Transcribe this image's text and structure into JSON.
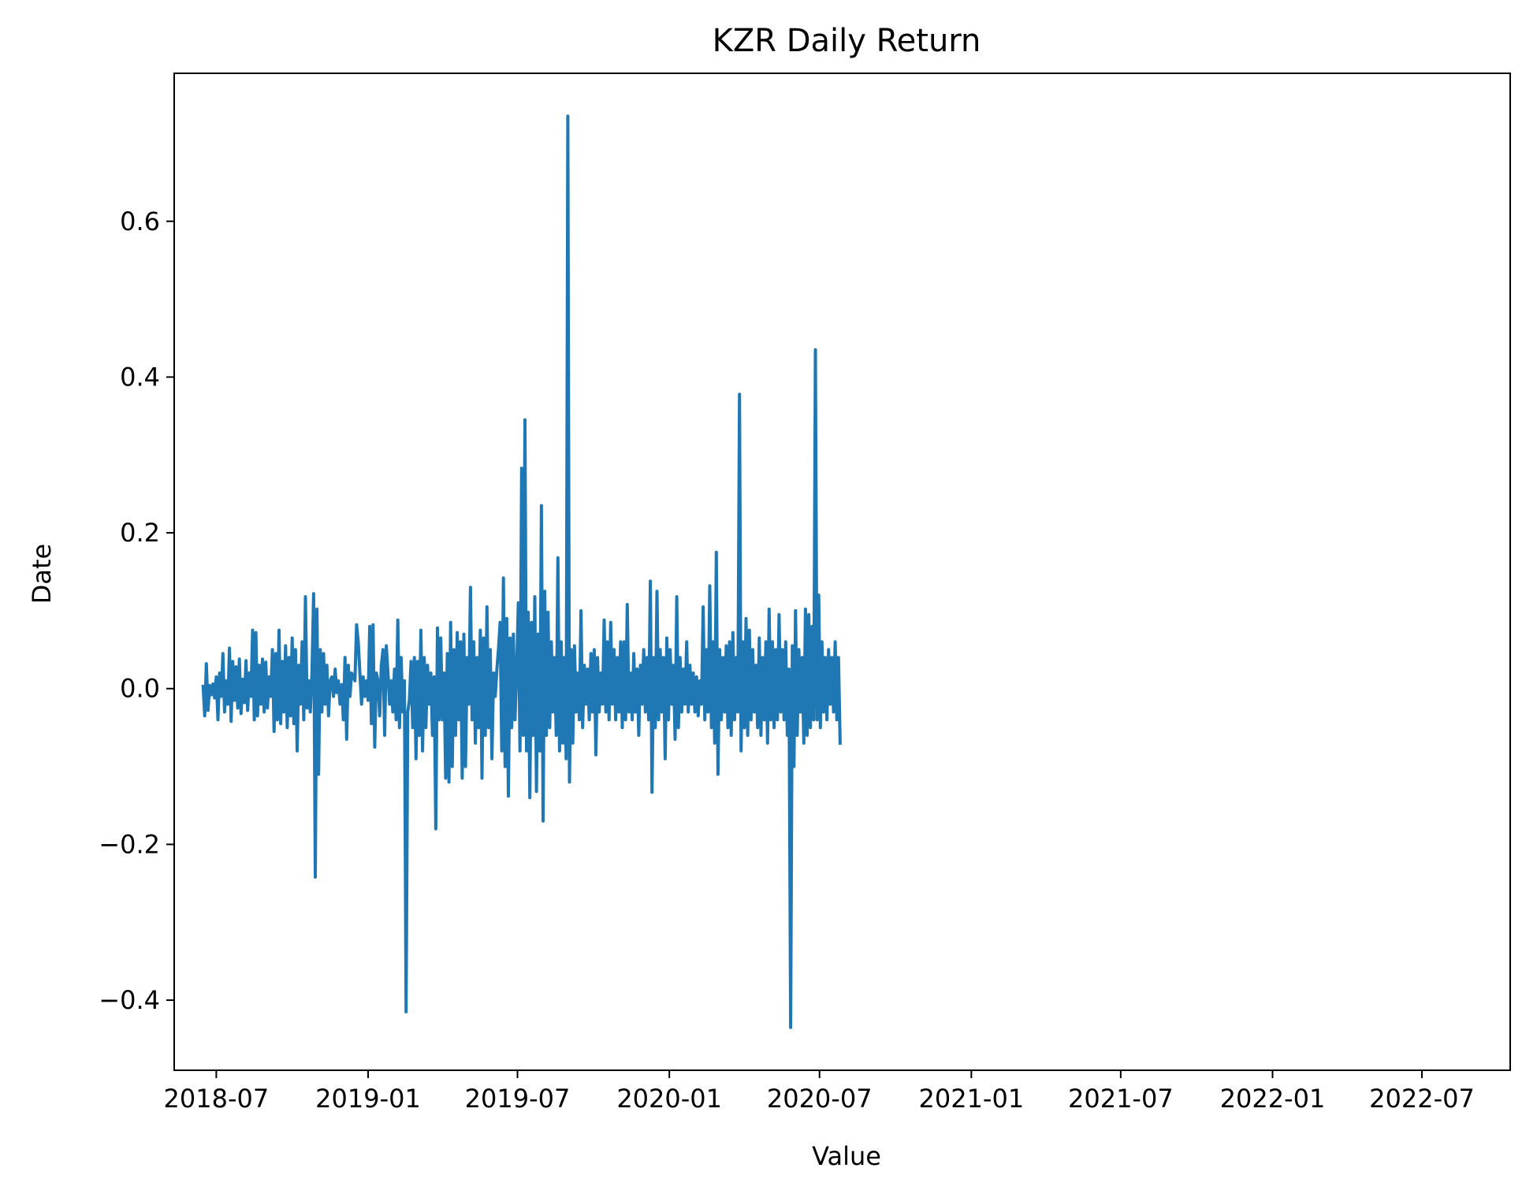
{
  "chart_data": {
    "type": "line",
    "title": "KZR Daily Return",
    "xlabel": "Value",
    "ylabel": "Date",
    "xlim": [
      "2018-05-11",
      "2022-10-16"
    ],
    "ylim": [
      -0.49,
      0.79
    ],
    "grid": false,
    "legend": "none",
    "series_color": "#1f77b4",
    "x_ticks": [
      {
        "date": "2018-07-01",
        "label": "2018-07"
      },
      {
        "date": "2019-01-01",
        "label": "2019-01"
      },
      {
        "date": "2019-07-01",
        "label": "2019-07"
      },
      {
        "date": "2020-01-01",
        "label": "2020-01"
      },
      {
        "date": "2020-07-01",
        "label": "2020-07"
      },
      {
        "date": "2021-01-01",
        "label": "2021-01"
      },
      {
        "date": "2021-07-01",
        "label": "2021-07"
      },
      {
        "date": "2022-01-01",
        "label": "2022-01"
      },
      {
        "date": "2022-07-01",
        "label": "2022-07"
      }
    ],
    "y_ticks": [
      {
        "value": -0.4,
        "label": "−0.4"
      },
      {
        "value": -0.2,
        "label": "−0.2"
      },
      {
        "value": 0.0,
        "label": "0.0"
      },
      {
        "value": 0.2,
        "label": "0.2"
      },
      {
        "value": 0.4,
        "label": "0.4"
      },
      {
        "value": 0.6,
        "label": "0.6"
      }
    ],
    "series": [
      {
        "name": "KZR Daily Return",
        "start_date": "2018-06-15",
        "step_days": 2,
        "values": [
          0.005,
          -0.035,
          0.032,
          -0.028,
          0.004,
          -0.008,
          0.006,
          -0.012,
          0.015,
          -0.04,
          0.02,
          -0.01,
          0.045,
          -0.03,
          0.01,
          -0.02,
          0.052,
          -0.042,
          0.035,
          -0.015,
          0.028,
          -0.025,
          0.038,
          -0.032,
          0.012,
          -0.018,
          0.036,
          -0.028,
          0.02,
          -0.01,
          0.075,
          -0.04,
          0.072,
          -0.035,
          0.03,
          -0.02,
          0.038,
          -0.03,
          0.034,
          -0.025,
          0.015,
          -0.01,
          0.05,
          -0.055,
          0.045,
          -0.04,
          0.075,
          -0.045,
          0.035,
          -0.03,
          0.055,
          -0.05,
          0.04,
          -0.035,
          0.065,
          -0.045,
          0.05,
          -0.08,
          0.03,
          -0.02,
          0.06,
          -0.04,
          0.118,
          -0.025,
          0.01,
          -0.03,
          0.02,
          0.122,
          -0.242,
          0.102,
          -0.11,
          0.05,
          -0.03,
          0.045,
          -0.02,
          0.03,
          -0.035,
          0.01,
          0.015,
          -0.01,
          0.025,
          -0.005,
          0.01,
          -0.02,
          0.005,
          -0.04,
          0.04,
          -0.065,
          0.03,
          -0.01,
          0.02,
          0.015,
          0.01,
          0.082,
          0.06,
          0.02,
          -0.02,
          0.015,
          -0.01,
          0.01,
          -0.015,
          0.08,
          -0.045,
          0.082,
          -0.075,
          0.02,
          0.01,
          -0.035,
          0.03,
          0.05,
          -0.06,
          0.055,
          0.02,
          -0.02,
          0.01,
          -0.03,
          0.025,
          -0.04,
          0.088,
          -0.05,
          0.04,
          -0.03,
          0.01,
          -0.415,
          -0.03,
          -0.015,
          0.035,
          -0.05,
          0.04,
          -0.09,
          0.035,
          -0.06,
          0.075,
          -0.08,
          0.04,
          -0.05,
          0.03,
          -0.02,
          0.02,
          -0.06,
          0.015,
          -0.18,
          0.078,
          -0.04,
          0.065,
          -0.04,
          0.02,
          -0.115,
          0.045,
          -0.12,
          0.085,
          -0.1,
          0.05,
          -0.06,
          0.072,
          -0.04,
          0.06,
          -0.115,
          0.07,
          -0.1,
          0.04,
          -0.02,
          0.13,
          -0.04,
          0.06,
          -0.07,
          0.04,
          -0.05,
          0.075,
          -0.115,
          0.065,
          -0.06,
          0.105,
          -0.05,
          0.05,
          -0.09,
          0.02,
          -0.01,
          0.025,
          0.05,
          0.085,
          -0.08,
          0.142,
          -0.1,
          0.09,
          -0.138,
          0.065,
          -0.05,
          0.07,
          -0.04,
          0.025,
          0.11,
          -0.08,
          0.283,
          -0.06,
          0.345,
          -0.08,
          0.098,
          -0.14,
          0.085,
          -0.06,
          0.118,
          -0.132,
          0.07,
          -0.08,
          0.235,
          -0.17,
          0.125,
          -0.06,
          0.098,
          -0.05,
          0.06,
          -0.03,
          0.04,
          -0.06,
          0.168,
          -0.08,
          0.06,
          -0.07,
          0.04,
          -0.09,
          0.735,
          -0.12,
          0.05,
          -0.07,
          0.055,
          -0.03,
          0.02,
          -0.04,
          0.1,
          -0.05,
          0.03,
          -0.02,
          0.025,
          -0.04,
          0.045,
          -0.03,
          0.05,
          -0.085,
          0.04,
          -0.03,
          0.02,
          -0.02,
          0.088,
          -0.03,
          0.06,
          -0.04,
          0.085,
          -0.02,
          0.05,
          -0.04,
          0.04,
          -0.03,
          0.06,
          -0.05,
          0.06,
          -0.04,
          0.108,
          -0.03,
          0.02,
          -0.04,
          0.045,
          -0.03,
          0.025,
          -0.06,
          0.03,
          -0.02,
          0.05,
          -0.03,
          0.04,
          -0.04,
          0.138,
          -0.133,
          0.04,
          -0.05,
          0.125,
          -0.04,
          0.05,
          -0.03,
          0.04,
          -0.09,
          0.065,
          -0.04,
          0.05,
          -0.02,
          0.03,
          -0.065,
          0.118,
          -0.05,
          0.04,
          -0.03,
          0.025,
          -0.02,
          0.06,
          -0.03,
          0.03,
          -0.02,
          0.02,
          -0.03,
          0.015,
          -0.035,
          0.01,
          -0.02,
          0.105,
          -0.04,
          0.05,
          -0.03,
          0.132,
          -0.05,
          0.06,
          -0.07,
          0.175,
          -0.11,
          0.05,
          -0.04,
          0.04,
          -0.03,
          0.055,
          -0.05,
          0.06,
          -0.06,
          0.072,
          -0.04,
          0.04,
          -0.03,
          0.378,
          -0.08,
          0.06,
          -0.05,
          0.09,
          -0.06,
          0.075,
          -0.04,
          0.05,
          -0.03,
          0.03,
          -0.05,
          0.065,
          -0.06,
          0.04,
          -0.04,
          0.06,
          -0.07,
          0.102,
          -0.04,
          0.06,
          -0.05,
          0.05,
          -0.04,
          0.095,
          -0.03,
          0.05,
          -0.04,
          0.06,
          -0.06,
          0.025,
          -0.435,
          0.055,
          -0.1,
          0.1,
          -0.06,
          0.05,
          -0.03,
          0.04,
          -0.07,
          0.102,
          -0.06,
          0.095,
          -0.05,
          0.08,
          -0.04,
          0.435,
          -0.04,
          0.12,
          -0.05,
          0.06,
          -0.03,
          0.04,
          -0.04,
          0.05,
          -0.02,
          0.04,
          -0.03,
          0.06,
          -0.04,
          0.04,
          -0.072
        ]
      }
    ]
  }
}
